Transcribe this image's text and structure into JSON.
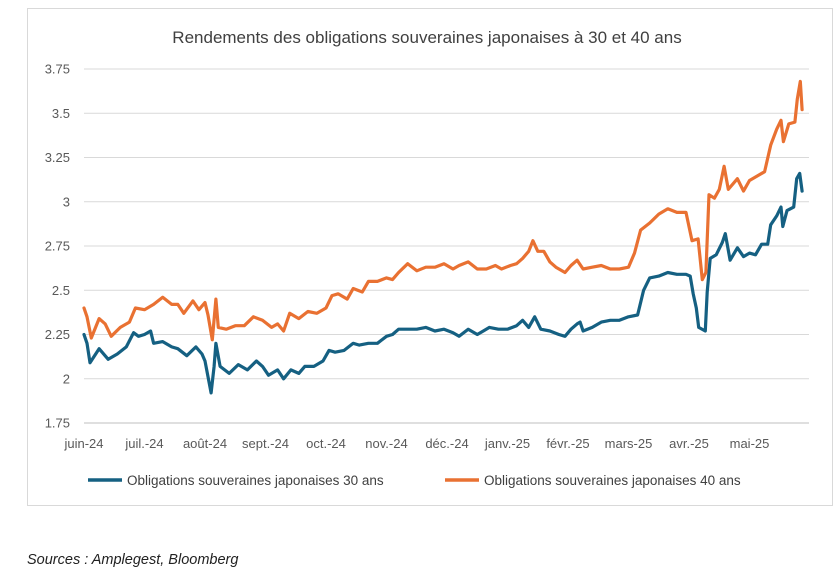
{
  "source": "Sources : Amplegest, Bloomberg",
  "chart_data": {
    "type": "line",
    "title": "Rendements des obligations souveraines japonaises à 30 et 40 ans",
    "xlabel": "",
    "ylabel": "",
    "ylim": [
      1.75,
      3.75
    ],
    "yticks": [
      "1.75",
      "2",
      "2.25",
      "2.5",
      "2.75",
      "3",
      "3.25",
      "3.5",
      "3.75"
    ],
    "categories": [
      "juin-24",
      "juil.-24",
      "août-24",
      "sept.-24",
      "oct.-24",
      "nov.-24",
      "déc.-24",
      "janv.-25",
      "févr.-25",
      "mars-25",
      "avr.-25",
      "mai-25"
    ],
    "grid": "horizontal",
    "legend": "bottom",
    "series": [
      {
        "name": "Obligations souveraines japonaises 30 ans",
        "color": "#156082",
        "points": [
          [
            0,
            2.25
          ],
          [
            0.05,
            2.2
          ],
          [
            0.1,
            2.09
          ],
          [
            0.25,
            2.17
          ],
          [
            0.4,
            2.11
          ],
          [
            0.55,
            2.14
          ],
          [
            0.7,
            2.18
          ],
          [
            0.82,
            2.26
          ],
          [
            0.9,
            2.24
          ],
          [
            1.0,
            2.25
          ],
          [
            1.1,
            2.27
          ],
          [
            1.15,
            2.2
          ],
          [
            1.3,
            2.21
          ],
          [
            1.45,
            2.18
          ],
          [
            1.55,
            2.17
          ],
          [
            1.7,
            2.13
          ],
          [
            1.85,
            2.18
          ],
          [
            1.95,
            2.14
          ],
          [
            2.0,
            2.1
          ],
          [
            2.1,
            1.92
          ],
          [
            2.15,
            2.07
          ],
          [
            2.18,
            2.2
          ],
          [
            2.25,
            2.07
          ],
          [
            2.4,
            2.03
          ],
          [
            2.55,
            2.08
          ],
          [
            2.7,
            2.05
          ],
          [
            2.85,
            2.1
          ],
          [
            2.95,
            2.07
          ],
          [
            3.05,
            2.02
          ],
          [
            3.2,
            2.05
          ],
          [
            3.3,
            2.0
          ],
          [
            3.42,
            2.05
          ],
          [
            3.55,
            2.03
          ],
          [
            3.65,
            2.07
          ],
          [
            3.8,
            2.07
          ],
          [
            3.95,
            2.1
          ],
          [
            4.05,
            2.16
          ],
          [
            4.15,
            2.15
          ],
          [
            4.3,
            2.16
          ],
          [
            4.45,
            2.2
          ],
          [
            4.55,
            2.19
          ],
          [
            4.7,
            2.2
          ],
          [
            4.85,
            2.2
          ],
          [
            5.0,
            2.24
          ],
          [
            5.1,
            2.25
          ],
          [
            5.2,
            2.28
          ],
          [
            5.35,
            2.28
          ],
          [
            5.5,
            2.28
          ],
          [
            5.65,
            2.29
          ],
          [
            5.8,
            2.27
          ],
          [
            5.95,
            2.28
          ],
          [
            6.1,
            2.26
          ],
          [
            6.2,
            2.24
          ],
          [
            6.35,
            2.28
          ],
          [
            6.5,
            2.25
          ],
          [
            6.6,
            2.27
          ],
          [
            6.7,
            2.29
          ],
          [
            6.85,
            2.28
          ],
          [
            7.0,
            2.28
          ],
          [
            7.15,
            2.3
          ],
          [
            7.25,
            2.33
          ],
          [
            7.35,
            2.29
          ],
          [
            7.45,
            2.35
          ],
          [
            7.55,
            2.28
          ],
          [
            7.7,
            2.27
          ],
          [
            7.85,
            2.25
          ],
          [
            7.95,
            2.24
          ],
          [
            8.05,
            2.28
          ],
          [
            8.15,
            2.31
          ],
          [
            8.2,
            2.32
          ],
          [
            8.25,
            2.27
          ],
          [
            8.4,
            2.29
          ],
          [
            8.55,
            2.32
          ],
          [
            8.7,
            2.33
          ],
          [
            8.85,
            2.33
          ],
          [
            9.0,
            2.35
          ],
          [
            9.15,
            2.36
          ],
          [
            9.25,
            2.5
          ],
          [
            9.35,
            2.57
          ],
          [
            9.5,
            2.58
          ],
          [
            9.65,
            2.6
          ],
          [
            9.8,
            2.59
          ],
          [
            9.95,
            2.59
          ],
          [
            10.02,
            2.58
          ],
          [
            10.07,
            2.48
          ],
          [
            10.12,
            2.4
          ],
          [
            10.16,
            2.29
          ],
          [
            10.27,
            2.27
          ],
          [
            10.3,
            2.49
          ],
          [
            10.35,
            2.68
          ],
          [
            10.45,
            2.7
          ],
          [
            10.55,
            2.77
          ],
          [
            10.6,
            2.82
          ],
          [
            10.68,
            2.67
          ],
          [
            10.8,
            2.74
          ],
          [
            10.9,
            2.69
          ],
          [
            11.0,
            2.71
          ],
          [
            11.1,
            2.7
          ],
          [
            11.2,
            2.76
          ],
          [
            11.3,
            2.76
          ],
          [
            11.35,
            2.87
          ],
          [
            11.45,
            2.92
          ],
          [
            11.52,
            2.97
          ],
          [
            11.55,
            2.86
          ],
          [
            11.62,
            2.95
          ],
          [
            11.73,
            2.97
          ],
          [
            11.78,
            3.13
          ],
          [
            11.83,
            3.16
          ],
          [
            11.87,
            3.06
          ]
        ]
      },
      {
        "name": "Obligations souveraines japonaises 40 ans",
        "color": "#e97132",
        "points": [
          [
            0,
            2.4
          ],
          [
            0.05,
            2.35
          ],
          [
            0.12,
            2.23
          ],
          [
            0.25,
            2.34
          ],
          [
            0.35,
            2.31
          ],
          [
            0.45,
            2.24
          ],
          [
            0.6,
            2.29
          ],
          [
            0.75,
            2.32
          ],
          [
            0.85,
            2.4
          ],
          [
            1.0,
            2.39
          ],
          [
            1.15,
            2.42
          ],
          [
            1.3,
            2.46
          ],
          [
            1.45,
            2.42
          ],
          [
            1.55,
            2.42
          ],
          [
            1.65,
            2.37
          ],
          [
            1.8,
            2.44
          ],
          [
            1.9,
            2.39
          ],
          [
            2.0,
            2.43
          ],
          [
            2.05,
            2.36
          ],
          [
            2.12,
            2.22
          ],
          [
            2.18,
            2.45
          ],
          [
            2.22,
            2.29
          ],
          [
            2.35,
            2.28
          ],
          [
            2.5,
            2.3
          ],
          [
            2.65,
            2.3
          ],
          [
            2.8,
            2.35
          ],
          [
            2.95,
            2.33
          ],
          [
            3.1,
            2.29
          ],
          [
            3.2,
            2.31
          ],
          [
            3.3,
            2.27
          ],
          [
            3.4,
            2.37
          ],
          [
            3.55,
            2.34
          ],
          [
            3.7,
            2.38
          ],
          [
            3.85,
            2.37
          ],
          [
            4.0,
            2.4
          ],
          [
            4.1,
            2.47
          ],
          [
            4.2,
            2.48
          ],
          [
            4.35,
            2.45
          ],
          [
            4.45,
            2.51
          ],
          [
            4.6,
            2.49
          ],
          [
            4.7,
            2.55
          ],
          [
            4.85,
            2.55
          ],
          [
            5.0,
            2.57
          ],
          [
            5.1,
            2.56
          ],
          [
            5.2,
            2.6
          ],
          [
            5.35,
            2.65
          ],
          [
            5.5,
            2.61
          ],
          [
            5.65,
            2.63
          ],
          [
            5.8,
            2.63
          ],
          [
            5.95,
            2.65
          ],
          [
            6.1,
            2.62
          ],
          [
            6.2,
            2.64
          ],
          [
            6.35,
            2.66
          ],
          [
            6.5,
            2.62
          ],
          [
            6.65,
            2.62
          ],
          [
            6.8,
            2.64
          ],
          [
            6.9,
            2.62
          ],
          [
            7.05,
            2.64
          ],
          [
            7.15,
            2.65
          ],
          [
            7.25,
            2.68
          ],
          [
            7.35,
            2.72
          ],
          [
            7.42,
            2.78
          ],
          [
            7.5,
            2.72
          ],
          [
            7.6,
            2.72
          ],
          [
            7.7,
            2.66
          ],
          [
            7.8,
            2.63
          ],
          [
            7.95,
            2.6
          ],
          [
            8.05,
            2.64
          ],
          [
            8.15,
            2.67
          ],
          [
            8.25,
            2.62
          ],
          [
            8.4,
            2.63
          ],
          [
            8.55,
            2.64
          ],
          [
            8.7,
            2.62
          ],
          [
            8.85,
            2.62
          ],
          [
            9.0,
            2.63
          ],
          [
            9.1,
            2.71
          ],
          [
            9.2,
            2.84
          ],
          [
            9.35,
            2.88
          ],
          [
            9.5,
            2.93
          ],
          [
            9.65,
            2.96
          ],
          [
            9.8,
            2.94
          ],
          [
            9.95,
            2.94
          ],
          [
            10.05,
            2.78
          ],
          [
            10.15,
            2.79
          ],
          [
            10.22,
            2.56
          ],
          [
            10.28,
            2.6
          ],
          [
            10.33,
            3.04
          ],
          [
            10.42,
            3.02
          ],
          [
            10.5,
            3.07
          ],
          [
            10.58,
            3.2
          ],
          [
            10.65,
            3.07
          ],
          [
            10.8,
            3.13
          ],
          [
            10.9,
            3.06
          ],
          [
            11.0,
            3.12
          ],
          [
            11.1,
            3.14
          ],
          [
            11.25,
            3.17
          ],
          [
            11.35,
            3.32
          ],
          [
            11.45,
            3.41
          ],
          [
            11.52,
            3.46
          ],
          [
            11.56,
            3.34
          ],
          [
            11.65,
            3.44
          ],
          [
            11.75,
            3.45
          ],
          [
            11.79,
            3.58
          ],
          [
            11.84,
            3.68
          ],
          [
            11.87,
            3.52
          ]
        ]
      }
    ]
  }
}
